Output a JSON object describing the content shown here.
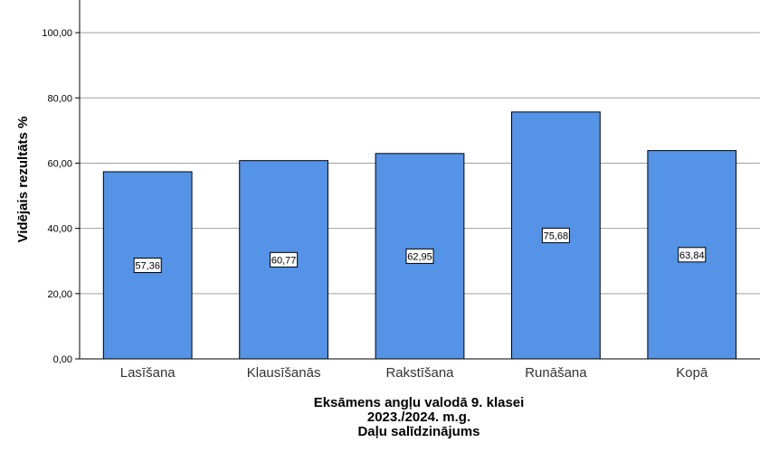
{
  "chart_data": {
    "type": "bar",
    "categories": [
      "Lasīšana",
      "Klausīšanās",
      "Rakstīšana",
      "Runāšana",
      "Kopā"
    ],
    "values": [
      57.36,
      60.77,
      62.95,
      75.68,
      63.84
    ],
    "data_labels": [
      "57,36",
      "60,77",
      "62,95",
      "75,68",
      "63,84"
    ],
    "ylabel": "Vidējais rezultāts %",
    "xlabel_lines": [
      "Eksāmens angļu valodā 9. klasei",
      "2023./2024. m.g.",
      "Daļu salīdzinājums"
    ],
    "ylim": [
      0,
      110
    ],
    "yticks": [
      0,
      20,
      40,
      60,
      80,
      100
    ],
    "ytick_labels": [
      "0,00",
      "20,00",
      "40,00",
      "60,00",
      "80,00",
      "100,00"
    ],
    "grid": true,
    "bar_color": "#5493e6",
    "gridline_color": "#a0a0a0"
  }
}
